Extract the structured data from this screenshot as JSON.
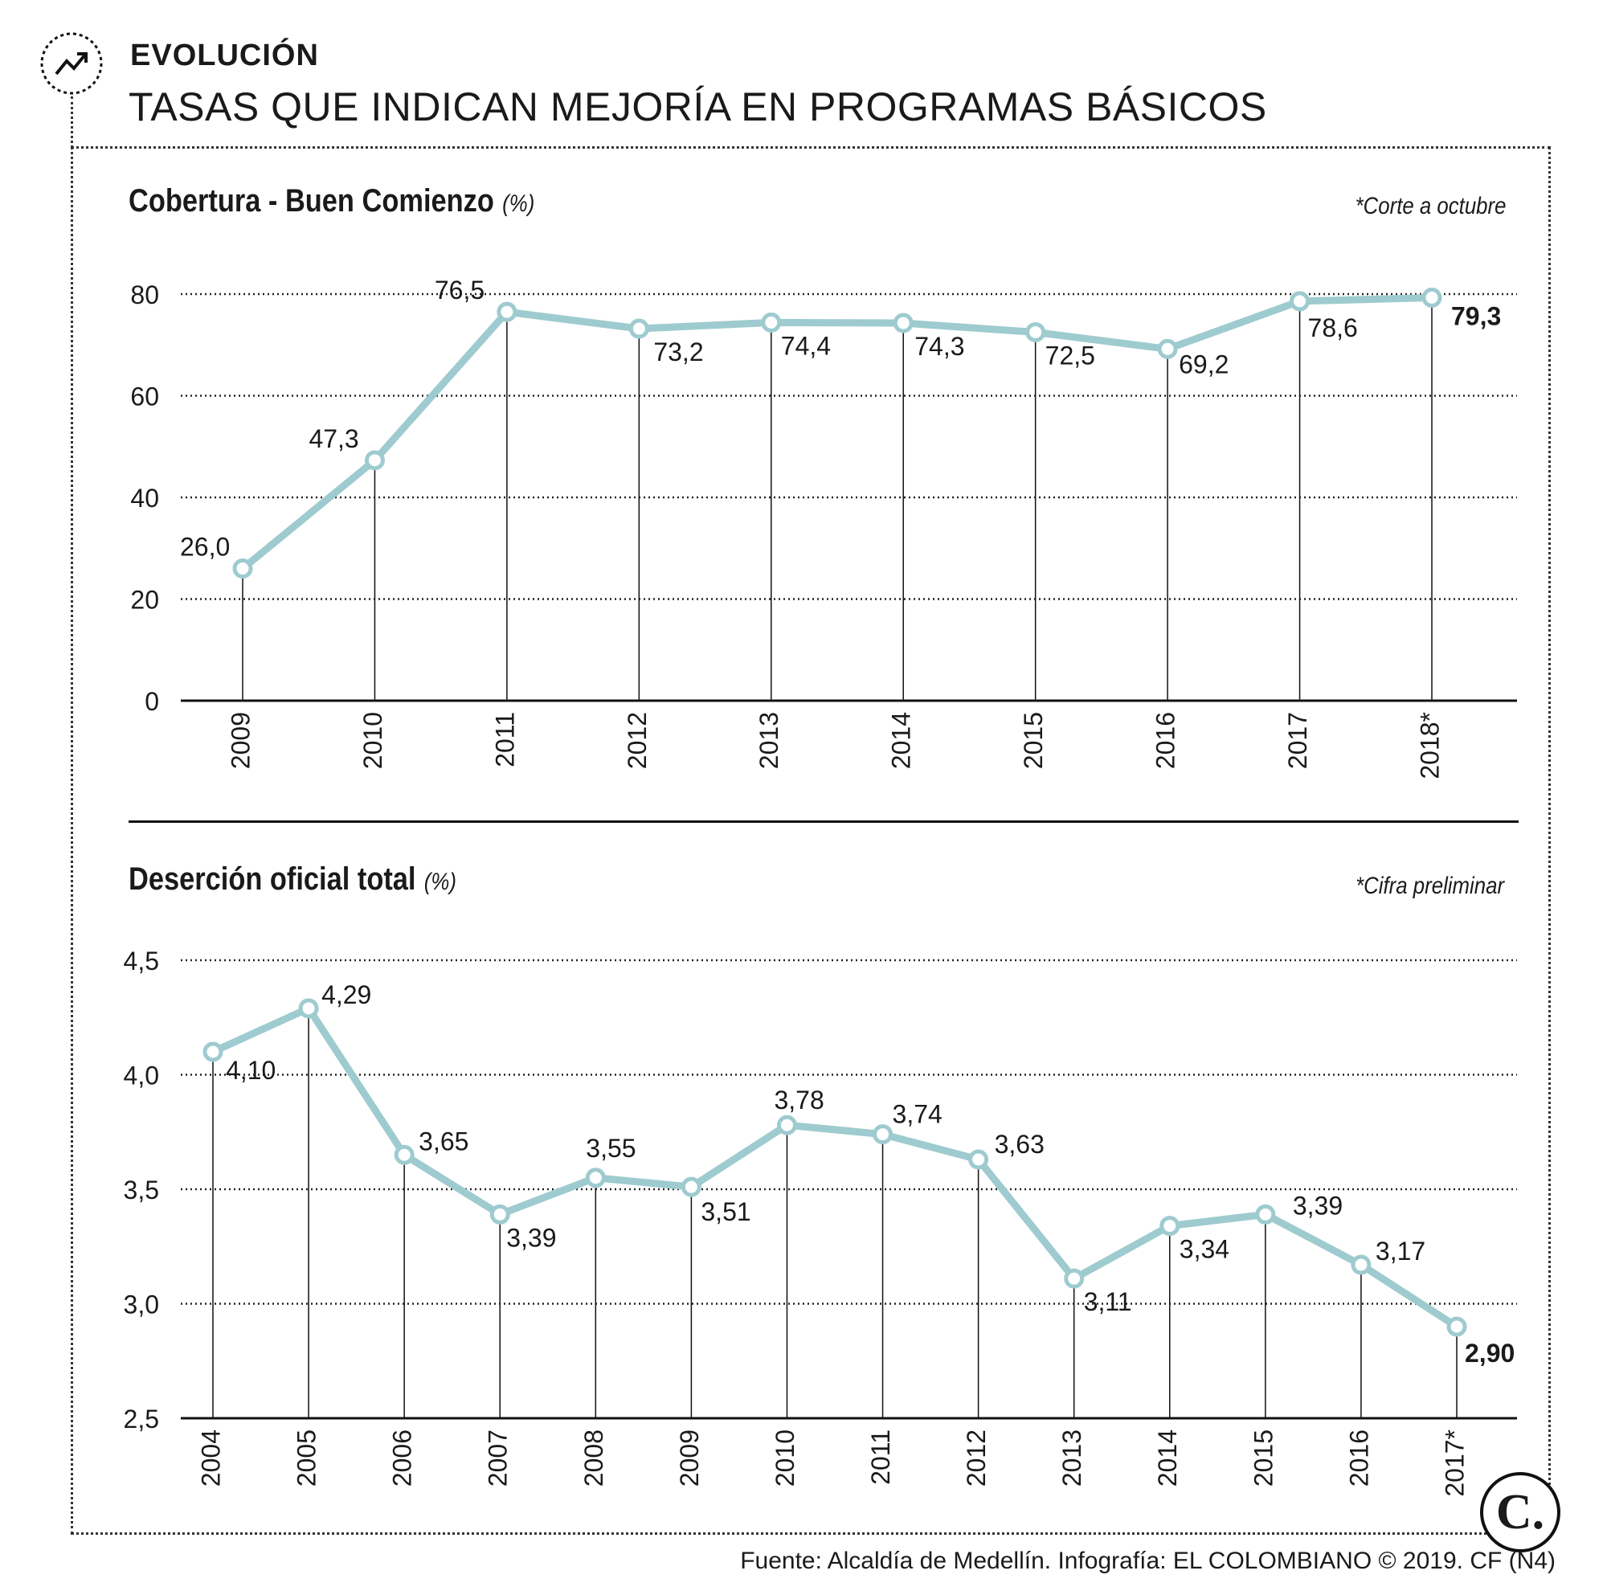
{
  "header": {
    "kicker": "EVOLUCIÓN",
    "headline": "TASAS QUE INDICAN MEJORÍA EN PROGRAMAS BÁSICOS"
  },
  "footer": {
    "source": "Fuente: Alcaldía de Medellín. Infografía: EL COLOMBIANO © 2019. CF (N4)",
    "logo_text": "C."
  },
  "colors": {
    "line": "#9ecbcf",
    "text": "#1a1a1a"
  },
  "chart_data": [
    {
      "type": "line",
      "title": "Cobertura - Buen Comienzo",
      "unit": "(%)",
      "note": "*Corte a octubre",
      "categories": [
        "2009",
        "2010",
        "2011",
        "2012",
        "2013",
        "2014",
        "2015",
        "2016",
        "2017",
        "2018*"
      ],
      "values": [
        26.0,
        47.3,
        76.5,
        73.2,
        74.4,
        74.3,
        72.5,
        69.2,
        78.6,
        79.3
      ],
      "value_labels": [
        "26,0",
        "47,3",
        "76,5",
        "73,2",
        "74,4",
        "74,3",
        "72,5",
        "69,2",
        "78,6",
        "79,3"
      ],
      "yticks": [
        "0",
        "20",
        "40",
        "60",
        "80"
      ],
      "ylim": [
        0,
        80
      ],
      "grid": true
    },
    {
      "type": "line",
      "title": "Deserción oficial total",
      "unit": "(%)",
      "note": "*Cifra preliminar",
      "categories": [
        "2004",
        "2005",
        "2006",
        "2007",
        "2008",
        "2009",
        "2010",
        "2011",
        "2012",
        "2013",
        "2014",
        "2015",
        "2016",
        "2017*"
      ],
      "values": [
        4.1,
        4.29,
        3.65,
        3.39,
        3.55,
        3.51,
        3.78,
        3.74,
        3.63,
        3.11,
        3.34,
        3.39,
        3.17,
        2.9
      ],
      "value_labels": [
        "4,10",
        "4,29",
        "3,65",
        "3,39",
        "3,55",
        "3,51",
        "3,78",
        "3,74",
        "3,63",
        "3,11",
        "3,34",
        "3,39",
        "3,17",
        "2,90"
      ],
      "yticks": [
        "2,5",
        "3,0",
        "3,5",
        "4,0",
        "4,5"
      ],
      "ylim": [
        2.5,
        4.5
      ],
      "grid": true
    }
  ]
}
